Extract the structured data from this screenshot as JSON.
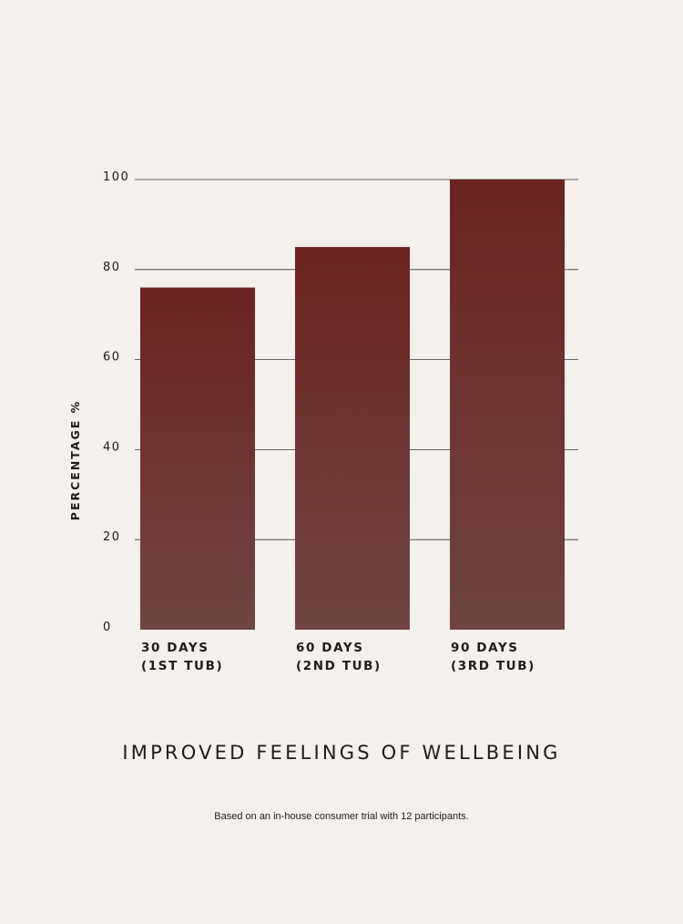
{
  "chart_data": {
    "type": "bar",
    "title": "IMPROVED FEELINGS OF WELLBEING",
    "ylabel": "PERCENTAGE %",
    "xlabel": "",
    "ylim": [
      0,
      100
    ],
    "yticks": [
      "0",
      "20",
      "40",
      "60",
      "80",
      "100"
    ],
    "categories": [
      {
        "line1": "30 DAYS",
        "line2": "(1ST TUB)"
      },
      {
        "line1": "60 DAYS",
        "line2": "(2ND TUB)"
      },
      {
        "line1": "90 DAYS",
        "line2": "(3RD TUB)"
      }
    ],
    "values": [
      76,
      85,
      100
    ],
    "grid": true,
    "colors": {
      "bar_top": "#6b2222",
      "bar_bottom": "#6f4543",
      "gridline": "#3a3a3a",
      "background": "#f4f0eb"
    }
  },
  "footnote": "Based on an in-house consumer trial with 12 participants."
}
